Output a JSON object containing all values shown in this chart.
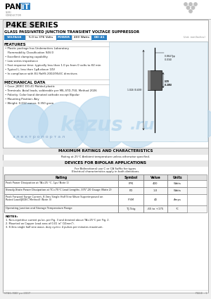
{
  "title": "P4KE SERIES",
  "subtitle": "GLASS PASSIVATED JUNCTION TRANSIENT VOLTAGE SUPPRESSOR",
  "voltage_label": "VOLTAGE",
  "voltage_value": "5.0 to 376 Volts",
  "power_label": "POWER",
  "power_value": "400 Watts",
  "package_label": "DO-41",
  "unit_label": "Unit: mm(Inches)",
  "features_title": "FEATURES",
  "features": [
    "• Plastic package has Underwriters Laboratory",
    "   Flammability Classification 94V-0",
    "• Excellent clamping capability",
    "• Low series impedance",
    "• Fast response time: typically less than 1.0 ps from 0 volts to 6V min",
    "• Typical Iⱼ, less than 1μA above 10V",
    "• In compliance with EU RoHS 2002/95/EC directives"
  ],
  "mech_title": "MECHANICAL DATA",
  "mech_data": [
    "• Case: JEDEC DO-41 Molded plastic",
    "• Terminals: Axial leads, solderable per MIL-STD-750, Method 2026",
    "• Polarity: Color band denoted cathode except Bipolar",
    "• Mounting Position: Any",
    "• Weight: 0.012 ounce, 0.350 gram"
  ],
  "max_ratings_title": "MAXIMUM RATINGS AND CHARACTERISTICS",
  "max_ratings_sub": "Rating at 25°C Ambient temperature unless otherwise specified.",
  "bipolar_title": "DEVICES FOR BIPOLAR APPLICATIONS",
  "bipolar_sub1": "For Bidirectional use C or CA Suffix for types",
  "bipolar_sub2": "Electrical characteristics apply in both directions.",
  "table_headers": [
    "Rating",
    "Symbol",
    "Value",
    "Units"
  ],
  "table_rows": [
    [
      "Peak Power Dissipation at TA=25 °C, 1μs (Note 1)",
      "PPK",
      "400",
      "Watts"
    ],
    [
      "Steady-State Power Dissipation at TC=75°C Lead Lengths .375\",20 Gauge (Note 2)",
      "PD",
      "1.0",
      "Watts"
    ],
    [
      "Peak Forward Surge Current, 8.3ms Single Half Sine Wave Superimposed on\nRated Load(JEDEC Method) (Note 3)",
      "IFSM",
      "40",
      "Amps"
    ],
    [
      "Operating Junction and Storage Temperature Range",
      "TJ,Tstg",
      "-65 to +175",
      "°C"
    ]
  ],
  "notes_title": "NOTES:",
  "notes": [
    "1. Non-repetitive current pulse, per Fig. 3 and derated above TA=25°C per Fig. 2.",
    "2. Mounted on Copper Lead area of 0.01 in² (10mm²).",
    "3. 8.3ms single half sine wave, duty cycle= 4 pulses per minutes maximum."
  ],
  "footer_left": "STAG-MAY po 2007",
  "footer_right": "PAGE : 1",
  "bg_color": "#f0f0f0",
  "white": "#ffffff",
  "blue_color": "#2b7fc2",
  "light_gray": "#d8d8d8",
  "mid_gray": "#aaaaaa",
  "dark_text": "#222222",
  "watermark_blue": "#b8d8ee",
  "diag_box_color": "#e8f2f8",
  "diag_border": "#aaccdd"
}
